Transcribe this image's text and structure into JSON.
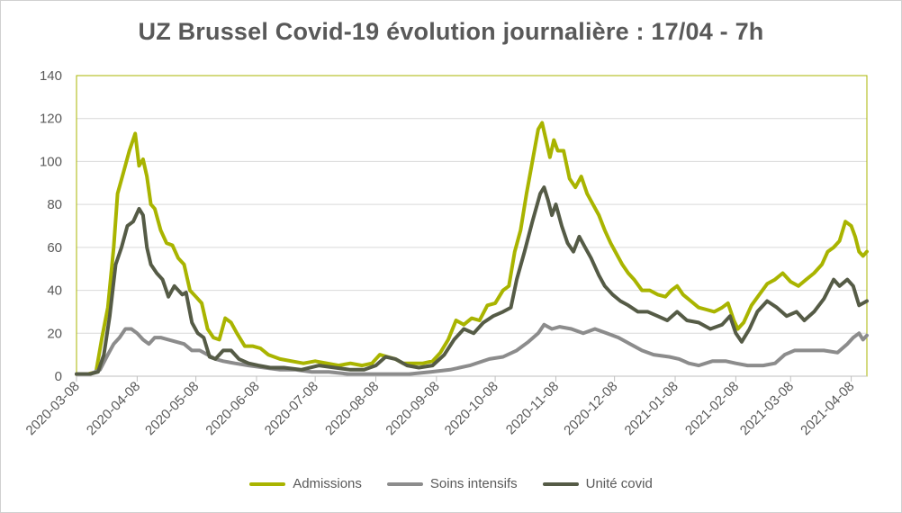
{
  "chart_data": {
    "type": "line",
    "title": "UZ Brussel Covid-19 évolution journalière : 17/04 - 7h",
    "xlabel": "",
    "ylabel": "",
    "ylim": [
      0,
      140
    ],
    "yticks": [
      0,
      20,
      40,
      60,
      80,
      100,
      120,
      140
    ],
    "x_range": [
      "2020-03-08",
      "2021-04-16"
    ],
    "xticks": [
      "2020-03-08",
      "2020-04-08",
      "2020-05-08",
      "2020-06-08",
      "2020-07-08",
      "2020-08-08",
      "2020-09-08",
      "2020-10-08",
      "2020-11-08",
      "2020-12-08",
      "2021-01-08",
      "2021-02-08",
      "2021-03-08",
      "2021-04-08"
    ],
    "grid": "horizontal",
    "legend": "bottom",
    "series": [
      {
        "name": "Admissions",
        "color": "#a9b400",
        "points": [
          [
            "2020-03-08",
            1
          ],
          [
            "2020-03-14",
            1
          ],
          [
            "2020-03-18",
            2
          ],
          [
            "2020-03-21",
            18
          ],
          [
            "2020-03-24",
            32
          ],
          [
            "2020-03-27",
            60
          ],
          [
            "2020-03-29",
            85
          ],
          [
            "2020-04-01",
            95
          ],
          [
            "2020-04-04",
            105
          ],
          [
            "2020-04-07",
            113
          ],
          [
            "2020-04-09",
            98
          ],
          [
            "2020-04-11",
            101
          ],
          [
            "2020-04-13",
            93
          ],
          [
            "2020-04-15",
            80
          ],
          [
            "2020-04-17",
            78
          ],
          [
            "2020-04-20",
            68
          ],
          [
            "2020-04-23",
            62
          ],
          [
            "2020-04-26",
            61
          ],
          [
            "2020-04-29",
            55
          ],
          [
            "2020-05-02",
            52
          ],
          [
            "2020-05-05",
            40
          ],
          [
            "2020-05-08",
            37
          ],
          [
            "2020-05-11",
            34
          ],
          [
            "2020-05-14",
            22
          ],
          [
            "2020-05-17",
            18
          ],
          [
            "2020-05-20",
            17
          ],
          [
            "2020-05-23",
            27
          ],
          [
            "2020-05-26",
            25
          ],
          [
            "2020-05-29",
            20
          ],
          [
            "2020-06-02",
            14
          ],
          [
            "2020-06-06",
            14
          ],
          [
            "2020-06-10",
            13
          ],
          [
            "2020-06-14",
            10
          ],
          [
            "2020-06-20",
            8
          ],
          [
            "2020-06-26",
            7
          ],
          [
            "2020-07-02",
            6
          ],
          [
            "2020-07-08",
            7
          ],
          [
            "2020-07-14",
            6
          ],
          [
            "2020-07-20",
            5
          ],
          [
            "2020-07-26",
            6
          ],
          [
            "2020-08-01",
            5
          ],
          [
            "2020-08-06",
            6
          ],
          [
            "2020-08-10",
            10
          ],
          [
            "2020-08-14",
            9
          ],
          [
            "2020-08-18",
            8
          ],
          [
            "2020-08-22",
            6
          ],
          [
            "2020-08-26",
            6
          ],
          [
            "2020-09-01",
            6
          ],
          [
            "2020-09-06",
            7
          ],
          [
            "2020-09-10",
            11
          ],
          [
            "2020-09-14",
            17
          ],
          [
            "2020-09-18",
            26
          ],
          [
            "2020-09-22",
            24
          ],
          [
            "2020-09-26",
            27
          ],
          [
            "2020-09-30",
            26
          ],
          [
            "2020-10-04",
            33
          ],
          [
            "2020-10-08",
            34
          ],
          [
            "2020-10-12",
            40
          ],
          [
            "2020-10-15",
            42
          ],
          [
            "2020-10-18",
            58
          ],
          [
            "2020-10-21",
            68
          ],
          [
            "2020-10-24",
            85
          ],
          [
            "2020-10-27",
            100
          ],
          [
            "2020-10-30",
            115
          ],
          [
            "2020-11-01",
            118
          ],
          [
            "2020-11-03",
            110
          ],
          [
            "2020-11-05",
            102
          ],
          [
            "2020-11-07",
            110
          ],
          [
            "2020-11-09",
            105
          ],
          [
            "2020-11-12",
            105
          ],
          [
            "2020-11-15",
            92
          ],
          [
            "2020-11-18",
            88
          ],
          [
            "2020-11-21",
            93
          ],
          [
            "2020-11-24",
            85
          ],
          [
            "2020-11-27",
            80
          ],
          [
            "2020-11-30",
            75
          ],
          [
            "2020-12-03",
            68
          ],
          [
            "2020-12-06",
            62
          ],
          [
            "2020-12-09",
            57
          ],
          [
            "2020-12-12",
            52
          ],
          [
            "2020-12-15",
            48
          ],
          [
            "2020-12-18",
            45
          ],
          [
            "2020-12-22",
            40
          ],
          [
            "2020-12-26",
            40
          ],
          [
            "2020-12-30",
            38
          ],
          [
            "2021-01-03",
            37
          ],
          [
            "2021-01-06",
            40
          ],
          [
            "2021-01-09",
            42
          ],
          [
            "2021-01-12",
            38
          ],
          [
            "2021-01-16",
            35
          ],
          [
            "2021-01-20",
            32
          ],
          [
            "2021-01-24",
            31
          ],
          [
            "2021-01-28",
            30
          ],
          [
            "2021-02-01",
            32
          ],
          [
            "2021-02-04",
            34
          ],
          [
            "2021-02-07",
            26
          ],
          [
            "2021-02-09",
            22
          ],
          [
            "2021-02-12",
            25
          ],
          [
            "2021-02-16",
            33
          ],
          [
            "2021-02-20",
            38
          ],
          [
            "2021-02-24",
            43
          ],
          [
            "2021-02-28",
            45
          ],
          [
            "2021-03-04",
            48
          ],
          [
            "2021-03-08",
            44
          ],
          [
            "2021-03-12",
            42
          ],
          [
            "2021-03-16",
            45
          ],
          [
            "2021-03-20",
            48
          ],
          [
            "2021-03-24",
            52
          ],
          [
            "2021-03-27",
            58
          ],
          [
            "2021-03-30",
            60
          ],
          [
            "2021-04-02",
            63
          ],
          [
            "2021-04-05",
            72
          ],
          [
            "2021-04-08",
            70
          ],
          [
            "2021-04-10",
            65
          ],
          [
            "2021-04-12",
            58
          ],
          [
            "2021-04-14",
            56
          ],
          [
            "2021-04-16",
            58
          ]
        ]
      },
      {
        "name": "Soins intensifs",
        "color": "#8c8c8c",
        "points": [
          [
            "2020-03-08",
            1
          ],
          [
            "2020-03-15",
            1
          ],
          [
            "2020-03-20",
            3
          ],
          [
            "2020-03-24",
            10
          ],
          [
            "2020-03-27",
            15
          ],
          [
            "2020-03-30",
            18
          ],
          [
            "2020-04-02",
            22
          ],
          [
            "2020-04-05",
            22
          ],
          [
            "2020-04-08",
            20
          ],
          [
            "2020-04-11",
            17
          ],
          [
            "2020-04-14",
            15
          ],
          [
            "2020-04-17",
            18
          ],
          [
            "2020-04-20",
            18
          ],
          [
            "2020-04-24",
            17
          ],
          [
            "2020-04-28",
            16
          ],
          [
            "2020-05-02",
            15
          ],
          [
            "2020-05-06",
            12
          ],
          [
            "2020-05-10",
            12
          ],
          [
            "2020-05-14",
            10
          ],
          [
            "2020-05-18",
            8
          ],
          [
            "2020-05-22",
            7
          ],
          [
            "2020-05-28",
            6
          ],
          [
            "2020-06-04",
            5
          ],
          [
            "2020-06-12",
            4
          ],
          [
            "2020-06-20",
            3
          ],
          [
            "2020-06-28",
            3
          ],
          [
            "2020-07-06",
            2
          ],
          [
            "2020-07-15",
            2
          ],
          [
            "2020-07-25",
            1
          ],
          [
            "2020-08-05",
            1
          ],
          [
            "2020-08-15",
            1
          ],
          [
            "2020-08-25",
            1
          ],
          [
            "2020-09-05",
            2
          ],
          [
            "2020-09-15",
            3
          ],
          [
            "2020-09-25",
            5
          ],
          [
            "2020-10-05",
            8
          ],
          [
            "2020-10-12",
            9
          ],
          [
            "2020-10-19",
            12
          ],
          [
            "2020-10-25",
            16
          ],
          [
            "2020-10-30",
            20
          ],
          [
            "2020-11-02",
            24
          ],
          [
            "2020-11-06",
            22
          ],
          [
            "2020-11-10",
            23
          ],
          [
            "2020-11-16",
            22
          ],
          [
            "2020-11-22",
            20
          ],
          [
            "2020-11-28",
            22
          ],
          [
            "2020-12-04",
            20
          ],
          [
            "2020-12-10",
            18
          ],
          [
            "2020-12-16",
            15
          ],
          [
            "2020-12-22",
            12
          ],
          [
            "2020-12-28",
            10
          ],
          [
            "2021-01-05",
            9
          ],
          [
            "2021-01-10",
            8
          ],
          [
            "2021-01-15",
            6
          ],
          [
            "2021-01-20",
            5
          ],
          [
            "2021-01-27",
            7
          ],
          [
            "2021-02-03",
            7
          ],
          [
            "2021-02-08",
            6
          ],
          [
            "2021-02-14",
            5
          ],
          [
            "2021-02-22",
            5
          ],
          [
            "2021-02-28",
            6
          ],
          [
            "2021-03-05",
            10
          ],
          [
            "2021-03-10",
            12
          ],
          [
            "2021-03-18",
            12
          ],
          [
            "2021-03-25",
            12
          ],
          [
            "2021-04-01",
            11
          ],
          [
            "2021-04-06",
            15
          ],
          [
            "2021-04-09",
            18
          ],
          [
            "2021-04-12",
            20
          ],
          [
            "2021-04-14",
            17
          ],
          [
            "2021-04-16",
            19
          ]
        ]
      },
      {
        "name": "Unité covid",
        "color": "#555b46",
        "points": [
          [
            "2020-03-08",
            1
          ],
          [
            "2020-03-15",
            1
          ],
          [
            "2020-03-19",
            2
          ],
          [
            "2020-03-22",
            10
          ],
          [
            "2020-03-25",
            28
          ],
          [
            "2020-03-28",
            52
          ],
          [
            "2020-03-31",
            60
          ],
          [
            "2020-04-03",
            70
          ],
          [
            "2020-04-06",
            72
          ],
          [
            "2020-04-09",
            78
          ],
          [
            "2020-04-11",
            75
          ],
          [
            "2020-04-13",
            60
          ],
          [
            "2020-04-15",
            52
          ],
          [
            "2020-04-18",
            48
          ],
          [
            "2020-04-21",
            45
          ],
          [
            "2020-04-24",
            37
          ],
          [
            "2020-04-27",
            42
          ],
          [
            "2020-05-01",
            38
          ],
          [
            "2020-05-03",
            39
          ],
          [
            "2020-05-06",
            25
          ],
          [
            "2020-05-09",
            20
          ],
          [
            "2020-05-12",
            18
          ],
          [
            "2020-05-15",
            9
          ],
          [
            "2020-05-18",
            8
          ],
          [
            "2020-05-22",
            12
          ],
          [
            "2020-05-26",
            12
          ],
          [
            "2020-05-30",
            8
          ],
          [
            "2020-06-04",
            6
          ],
          [
            "2020-06-09",
            5
          ],
          [
            "2020-06-15",
            4
          ],
          [
            "2020-06-22",
            4
          ],
          [
            "2020-07-01",
            3
          ],
          [
            "2020-07-10",
            5
          ],
          [
            "2020-07-18",
            4
          ],
          [
            "2020-07-26",
            3
          ],
          [
            "2020-08-02",
            3
          ],
          [
            "2020-08-08",
            5
          ],
          [
            "2020-08-13",
            9
          ],
          [
            "2020-08-18",
            8
          ],
          [
            "2020-08-24",
            5
          ],
          [
            "2020-08-30",
            4
          ],
          [
            "2020-09-06",
            5
          ],
          [
            "2020-09-12",
            10
          ],
          [
            "2020-09-17",
            17
          ],
          [
            "2020-09-22",
            22
          ],
          [
            "2020-09-27",
            20
          ],
          [
            "2020-10-02",
            25
          ],
          [
            "2020-10-07",
            28
          ],
          [
            "2020-10-12",
            30
          ],
          [
            "2020-10-16",
            32
          ],
          [
            "2020-10-19",
            45
          ],
          [
            "2020-10-23",
            58
          ],
          [
            "2020-10-27",
            72
          ],
          [
            "2020-10-31",
            85
          ],
          [
            "2020-11-02",
            88
          ],
          [
            "2020-11-04",
            82
          ],
          [
            "2020-11-06",
            75
          ],
          [
            "2020-11-08",
            80
          ],
          [
            "2020-11-11",
            70
          ],
          [
            "2020-11-14",
            62
          ],
          [
            "2020-11-17",
            58
          ],
          [
            "2020-11-20",
            65
          ],
          [
            "2020-11-23",
            60
          ],
          [
            "2020-11-26",
            55
          ],
          [
            "2020-11-30",
            47
          ],
          [
            "2020-12-03",
            42
          ],
          [
            "2020-12-07",
            38
          ],
          [
            "2020-12-11",
            35
          ],
          [
            "2020-12-15",
            33
          ],
          [
            "2020-12-20",
            30
          ],
          [
            "2020-12-25",
            30
          ],
          [
            "2020-12-30",
            28
          ],
          [
            "2021-01-04",
            26
          ],
          [
            "2021-01-09",
            30
          ],
          [
            "2021-01-14",
            26
          ],
          [
            "2021-01-20",
            25
          ],
          [
            "2021-01-26",
            22
          ],
          [
            "2021-02-01",
            24
          ],
          [
            "2021-02-05",
            28
          ],
          [
            "2021-02-08",
            20
          ],
          [
            "2021-02-11",
            16
          ],
          [
            "2021-02-15",
            22
          ],
          [
            "2021-02-19",
            30
          ],
          [
            "2021-02-24",
            35
          ],
          [
            "2021-03-01",
            32
          ],
          [
            "2021-03-06",
            28
          ],
          [
            "2021-03-11",
            30
          ],
          [
            "2021-03-15",
            26
          ],
          [
            "2021-03-20",
            30
          ],
          [
            "2021-03-25",
            36
          ],
          [
            "2021-03-30",
            45
          ],
          [
            "2021-04-02",
            42
          ],
          [
            "2021-04-06",
            45
          ],
          [
            "2021-04-09",
            42
          ],
          [
            "2021-04-12",
            33
          ],
          [
            "2021-04-14",
            34
          ],
          [
            "2021-04-16",
            35
          ]
        ]
      }
    ]
  }
}
